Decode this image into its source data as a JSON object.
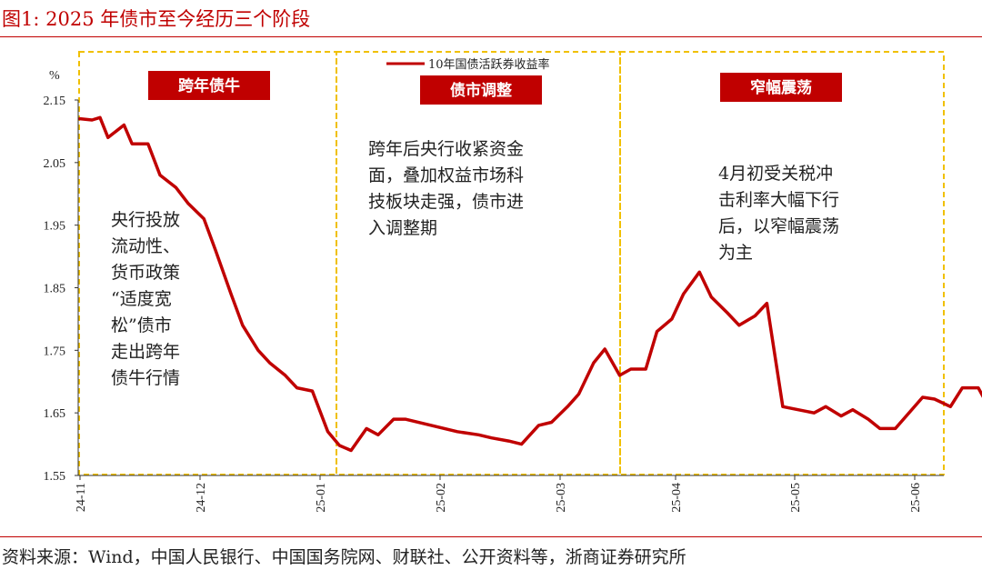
{
  "figure": {
    "title": "图1:  2025 年债市至今经历三个阶段",
    "source": "资料来源：Wind，中国人民银行、中国国务院网、财联社、公开资料等，浙商证券研究所"
  },
  "chart_data": {
    "type": "line",
    "unit": "%",
    "ylim": [
      1.55,
      2.15
    ],
    "yticks": [
      "2.15",
      "2.05",
      "1.95",
      "1.85",
      "1.75",
      "1.65",
      "1.55"
    ],
    "xticks": [
      "24-11",
      "24-12",
      "25-01",
      "25-02",
      "25-03",
      "25-04",
      "25-05",
      "25-06"
    ],
    "legend": {
      "label": "10年国债活跃券收益率",
      "placement": "top-center"
    },
    "grid": false,
    "series": [
      {
        "name": "10年国债活跃券收益率",
        "color": "#c00000",
        "x": [
          "2024-11-01",
          "2024-11-04",
          "2024-11-06",
          "2024-11-08",
          "2024-11-12",
          "2024-11-14",
          "2024-11-18",
          "2024-11-21",
          "2024-11-25",
          "2024-11-28",
          "2024-12-02",
          "2024-12-05",
          "2024-12-09",
          "2024-12-12",
          "2024-12-16",
          "2024-12-19",
          "2024-12-23",
          "2024-12-26",
          "2024-12-30",
          "2025-01-03",
          "2025-01-06",
          "2025-01-09",
          "2025-01-13",
          "2025-01-16",
          "2025-01-20",
          "2025-01-23",
          "2025-02-05",
          "2025-02-10",
          "2025-02-13",
          "2025-02-17",
          "2025-02-20",
          "2025-02-24",
          "2025-02-27",
          "2025-03-03",
          "2025-03-06",
          "2025-03-10",
          "2025-03-13",
          "2025-03-17",
          "2025-03-20",
          "2025-03-24",
          "2025-03-27",
          "2025-03-31",
          "2025-04-03",
          "2025-04-07",
          "2025-04-10",
          "2025-04-14",
          "2025-04-17",
          "2025-04-21",
          "2025-04-24",
          "2025-04-28",
          "2025-05-06",
          "2025-05-09",
          "2025-05-13",
          "2025-05-16",
          "2025-05-20",
          "2025-05-23",
          "2025-05-27",
          "2025-06-03",
          "2025-06-06",
          "2025-06-10",
          "2025-06-13",
          "2025-06-17",
          "2025-06-20"
        ],
        "values": [
          2.12,
          2.118,
          2.122,
          2.09,
          2.11,
          2.08,
          2.08,
          2.03,
          2.01,
          1.985,
          1.96,
          1.91,
          1.84,
          1.79,
          1.75,
          1.73,
          1.71,
          1.69,
          1.685,
          1.62,
          1.598,
          1.59,
          1.625,
          1.615,
          1.64,
          1.64,
          1.62,
          1.615,
          1.61,
          1.605,
          1.6,
          1.63,
          1.635,
          1.66,
          1.68,
          1.73,
          1.752,
          1.71,
          1.72,
          1.72,
          1.78,
          1.8,
          1.84,
          1.875,
          1.835,
          1.81,
          1.79,
          1.805,
          1.825,
          1.66,
          1.65,
          1.66,
          1.645,
          1.655,
          1.64,
          1.625,
          1.625,
          1.675,
          1.672,
          1.66,
          1.69,
          1.69,
          1.655
        ]
      }
    ],
    "stages": [
      {
        "label": "跨年债牛",
        "annotation": [
          "央行投放",
          "流动性、",
          "货币政策",
          "“适度宽",
          "松”债市",
          "走出跨年",
          "债牛行情"
        ]
      },
      {
        "label": "债市调整",
        "annotation": [
          "跨年后央行收紧资金",
          "面，叠加权益市场科",
          "技板块走强，债市进",
          "入调整期"
        ]
      },
      {
        "label": "窄幅震荡",
        "annotation": [
          "4月初受关税冲",
          "击利率大幅下行",
          "后，以窄幅震荡",
          "为主"
        ]
      }
    ]
  },
  "colors": {
    "accent": "#c00000",
    "stage_border": "#f0c000",
    "axis": "#333333"
  }
}
